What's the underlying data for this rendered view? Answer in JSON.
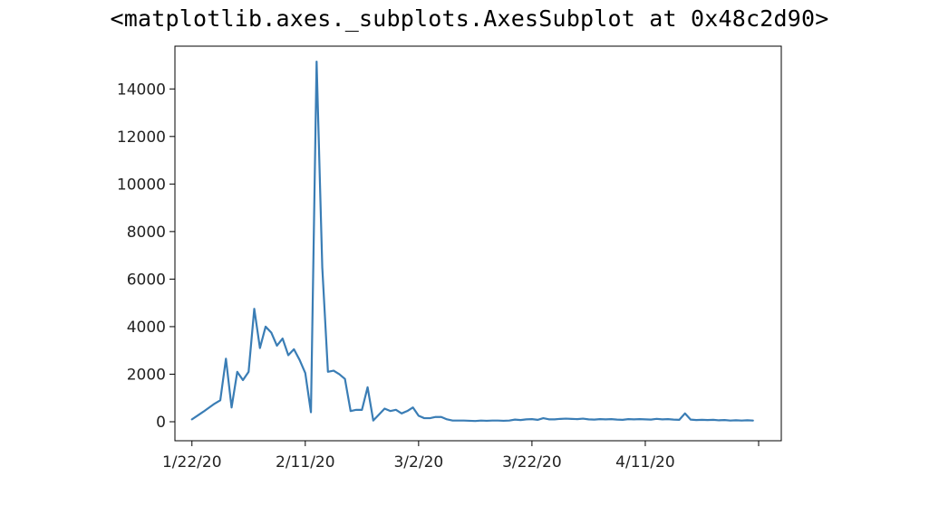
{
  "output_repr": "<matplotlib.axes._subplots.AxesSubplot at 0x48c2d90>",
  "colors": {
    "line": "#3a7db5",
    "axis": "#000000",
    "background": "#ffffff"
  },
  "chart_data": {
    "type": "line",
    "title": "",
    "xlabel": "",
    "ylabel": "",
    "x_start": "1/22/20",
    "x_tick_labels": [
      "1/22/20",
      "2/11/20",
      "3/2/20",
      "3/22/20",
      "4/11/20",
      ""
    ],
    "x_ticks": [
      "1/22/20",
      "2/11/20",
      "3/2/20",
      "3/22/20",
      "4/11/20",
      "5/1/20"
    ],
    "xlim": [
      "1/19/20",
      "5/5/20"
    ],
    "ylim": [
      -800,
      15800
    ],
    "y_ticks": [
      0,
      2000,
      4000,
      6000,
      8000,
      10000,
      12000,
      14000
    ],
    "grid": false,
    "legend": "none",
    "series": [
      {
        "name": "",
        "x": [
          "1/22/20",
          "1/23/20",
          "1/24/20",
          "1/25/20",
          "1/26/20",
          "1/27/20",
          "1/28/20",
          "1/29/20",
          "1/30/20",
          "1/31/20",
          "2/1/20",
          "2/2/20",
          "2/3/20",
          "2/4/20",
          "2/5/20",
          "2/6/20",
          "2/7/20",
          "2/8/20",
          "2/9/20",
          "2/10/20",
          "2/11/20",
          "2/12/20",
          "2/13/20",
          "2/14/20",
          "2/15/20",
          "2/16/20",
          "2/17/20",
          "2/18/20",
          "2/19/20",
          "2/20/20",
          "2/21/20",
          "2/22/20",
          "2/23/20",
          "2/24/20",
          "2/25/20",
          "2/26/20",
          "2/27/20",
          "2/28/20",
          "2/29/20",
          "3/1/20",
          "3/2/20",
          "3/3/20",
          "3/4/20",
          "3/5/20",
          "3/6/20",
          "3/7/20",
          "3/8/20",
          "3/9/20",
          "3/10/20",
          "3/11/20",
          "3/12/20",
          "3/13/20",
          "3/14/20",
          "3/15/20",
          "3/16/20",
          "3/17/20",
          "3/18/20",
          "3/19/20",
          "3/20/20",
          "3/21/20",
          "3/22/20",
          "3/23/20",
          "3/24/20",
          "3/25/20",
          "3/26/20",
          "3/27/20",
          "3/28/20",
          "3/29/20",
          "3/30/20",
          "3/31/20",
          "4/1/20",
          "4/2/20",
          "4/3/20",
          "4/4/20",
          "4/5/20",
          "4/6/20",
          "4/7/20",
          "4/8/20",
          "4/9/20",
          "4/10/20",
          "4/11/20",
          "4/12/20",
          "4/13/20",
          "4/14/20",
          "4/15/20",
          "4/16/20",
          "4/17/20",
          "4/18/20",
          "4/19/20",
          "4/20/20",
          "4/21/20",
          "4/22/20",
          "4/23/20",
          "4/24/20",
          "4/25/20",
          "4/26/20",
          "4/27/20",
          "4/28/20",
          "4/29/20",
          "4/30/20"
        ],
        "y": [
          100,
          260,
          420,
          590,
          760,
          900,
          2650,
          600,
          2100,
          1750,
          2100,
          4750,
          3100,
          4000,
          3750,
          3200,
          3500,
          2800,
          3050,
          2600,
          2050,
          400,
          15150,
          6500,
          2100,
          2150,
          2000,
          1800,
          450,
          500,
          500,
          1450,
          50,
          300,
          550,
          450,
          500,
          350,
          450,
          600,
          250,
          150,
          150,
          200,
          200,
          100,
          50,
          50,
          50,
          40,
          30,
          50,
          40,
          50,
          50,
          40,
          50,
          90,
          70,
          100,
          110,
          80,
          150,
          100,
          100,
          120,
          130,
          120,
          110,
          130,
          100,
          90,
          110,
          100,
          110,
          90,
          80,
          110,
          100,
          110,
          100,
          90,
          120,
          100,
          110,
          90,
          80,
          350,
          90,
          70,
          80,
          70,
          80,
          60,
          70,
          50,
          60,
          50,
          60,
          50
        ]
      }
    ]
  }
}
